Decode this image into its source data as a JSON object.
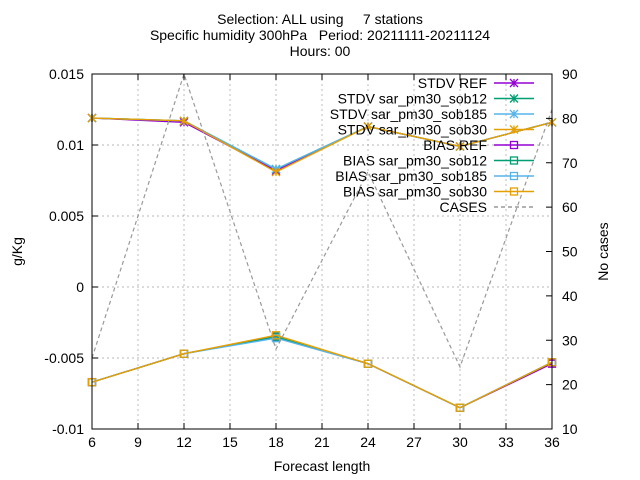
{
  "title_lines": [
    "Selection: ALL using     7 stations",
    "Specific humidity 300hPa   Period: 20211111-20211124",
    "Hours: 00"
  ],
  "chart_data": {
    "type": "line",
    "xlabel": "Forecast length",
    "ylabel": "g/Kg",
    "y2label": "No cases",
    "x": [
      6,
      12,
      18,
      24,
      30,
      36
    ],
    "xlim": [
      6,
      36
    ],
    "xticks": [
      6,
      9,
      12,
      15,
      18,
      21,
      24,
      27,
      30,
      33,
      36
    ],
    "ylim": [
      -0.01,
      0.015
    ],
    "yticks": [
      -0.01,
      -0.005,
      0,
      0.005,
      0.01,
      0.015
    ],
    "ytick_labels": [
      "-0.01",
      "-0.005",
      "0",
      "0.005",
      "0.01",
      "0.015"
    ],
    "y2lim": [
      10,
      90
    ],
    "y2ticks": [
      10,
      20,
      30,
      40,
      50,
      60,
      70,
      80,
      90
    ],
    "grid": true,
    "legend_position": "top-right",
    "series": [
      {
        "name": "STDV REF",
        "axis": "y1",
        "color": "#9400d3",
        "marker": "x-star",
        "dash": false,
        "values": [
          0.0119,
          0.0116,
          0.0082,
          0.0113,
          0.0099,
          0.0116
        ]
      },
      {
        "name": "STDV sar_pm30_sob12",
        "axis": "y1",
        "color": "#009e73",
        "marker": "x-star",
        "dash": false,
        "values": [
          0.0119,
          0.0117,
          0.0083,
          0.0113,
          0.0099,
          0.0116
        ]
      },
      {
        "name": "STDV sar_pm30_sob185",
        "axis": "y1",
        "color": "#56b4e9",
        "marker": "x-star",
        "dash": false,
        "values": [
          0.0119,
          0.0117,
          0.0083,
          0.0113,
          0.0099,
          0.0116
        ]
      },
      {
        "name": "STDV sar_pm30_sob30",
        "axis": "y1",
        "color": "#e69f00",
        "marker": "x-star",
        "dash": false,
        "values": [
          0.0119,
          0.0117,
          0.0081,
          0.0113,
          0.0099,
          0.0116
        ]
      },
      {
        "name": "BIAS REF",
        "axis": "y1",
        "color": "#9400d3",
        "marker": "square",
        "dash": false,
        "values": [
          -0.0067,
          -0.0047,
          -0.0035,
          -0.0054,
          -0.0085,
          -0.0054
        ]
      },
      {
        "name": "BIAS sar_pm30_sob12",
        "axis": "y1",
        "color": "#009e73",
        "marker": "square",
        "dash": false,
        "values": [
          -0.0067,
          -0.0047,
          -0.0035,
          -0.0054,
          -0.0085,
          -0.0053
        ]
      },
      {
        "name": "BIAS sar_pm30_sob185",
        "axis": "y1",
        "color": "#56b4e9",
        "marker": "square",
        "dash": false,
        "values": [
          -0.0067,
          -0.0047,
          -0.0036,
          -0.0054,
          -0.0085,
          -0.0053
        ]
      },
      {
        "name": "BIAS sar_pm30_sob30",
        "axis": "y1",
        "color": "#e69f00",
        "marker": "square",
        "dash": false,
        "values": [
          -0.0067,
          -0.0047,
          -0.0034,
          -0.0054,
          -0.0085,
          -0.0053
        ]
      },
      {
        "name": "CASES",
        "axis": "y2",
        "color": "#999999",
        "marker": "none",
        "dash": true,
        "values": [
          26,
          90,
          28,
          68,
          24,
          82
        ]
      }
    ]
  }
}
